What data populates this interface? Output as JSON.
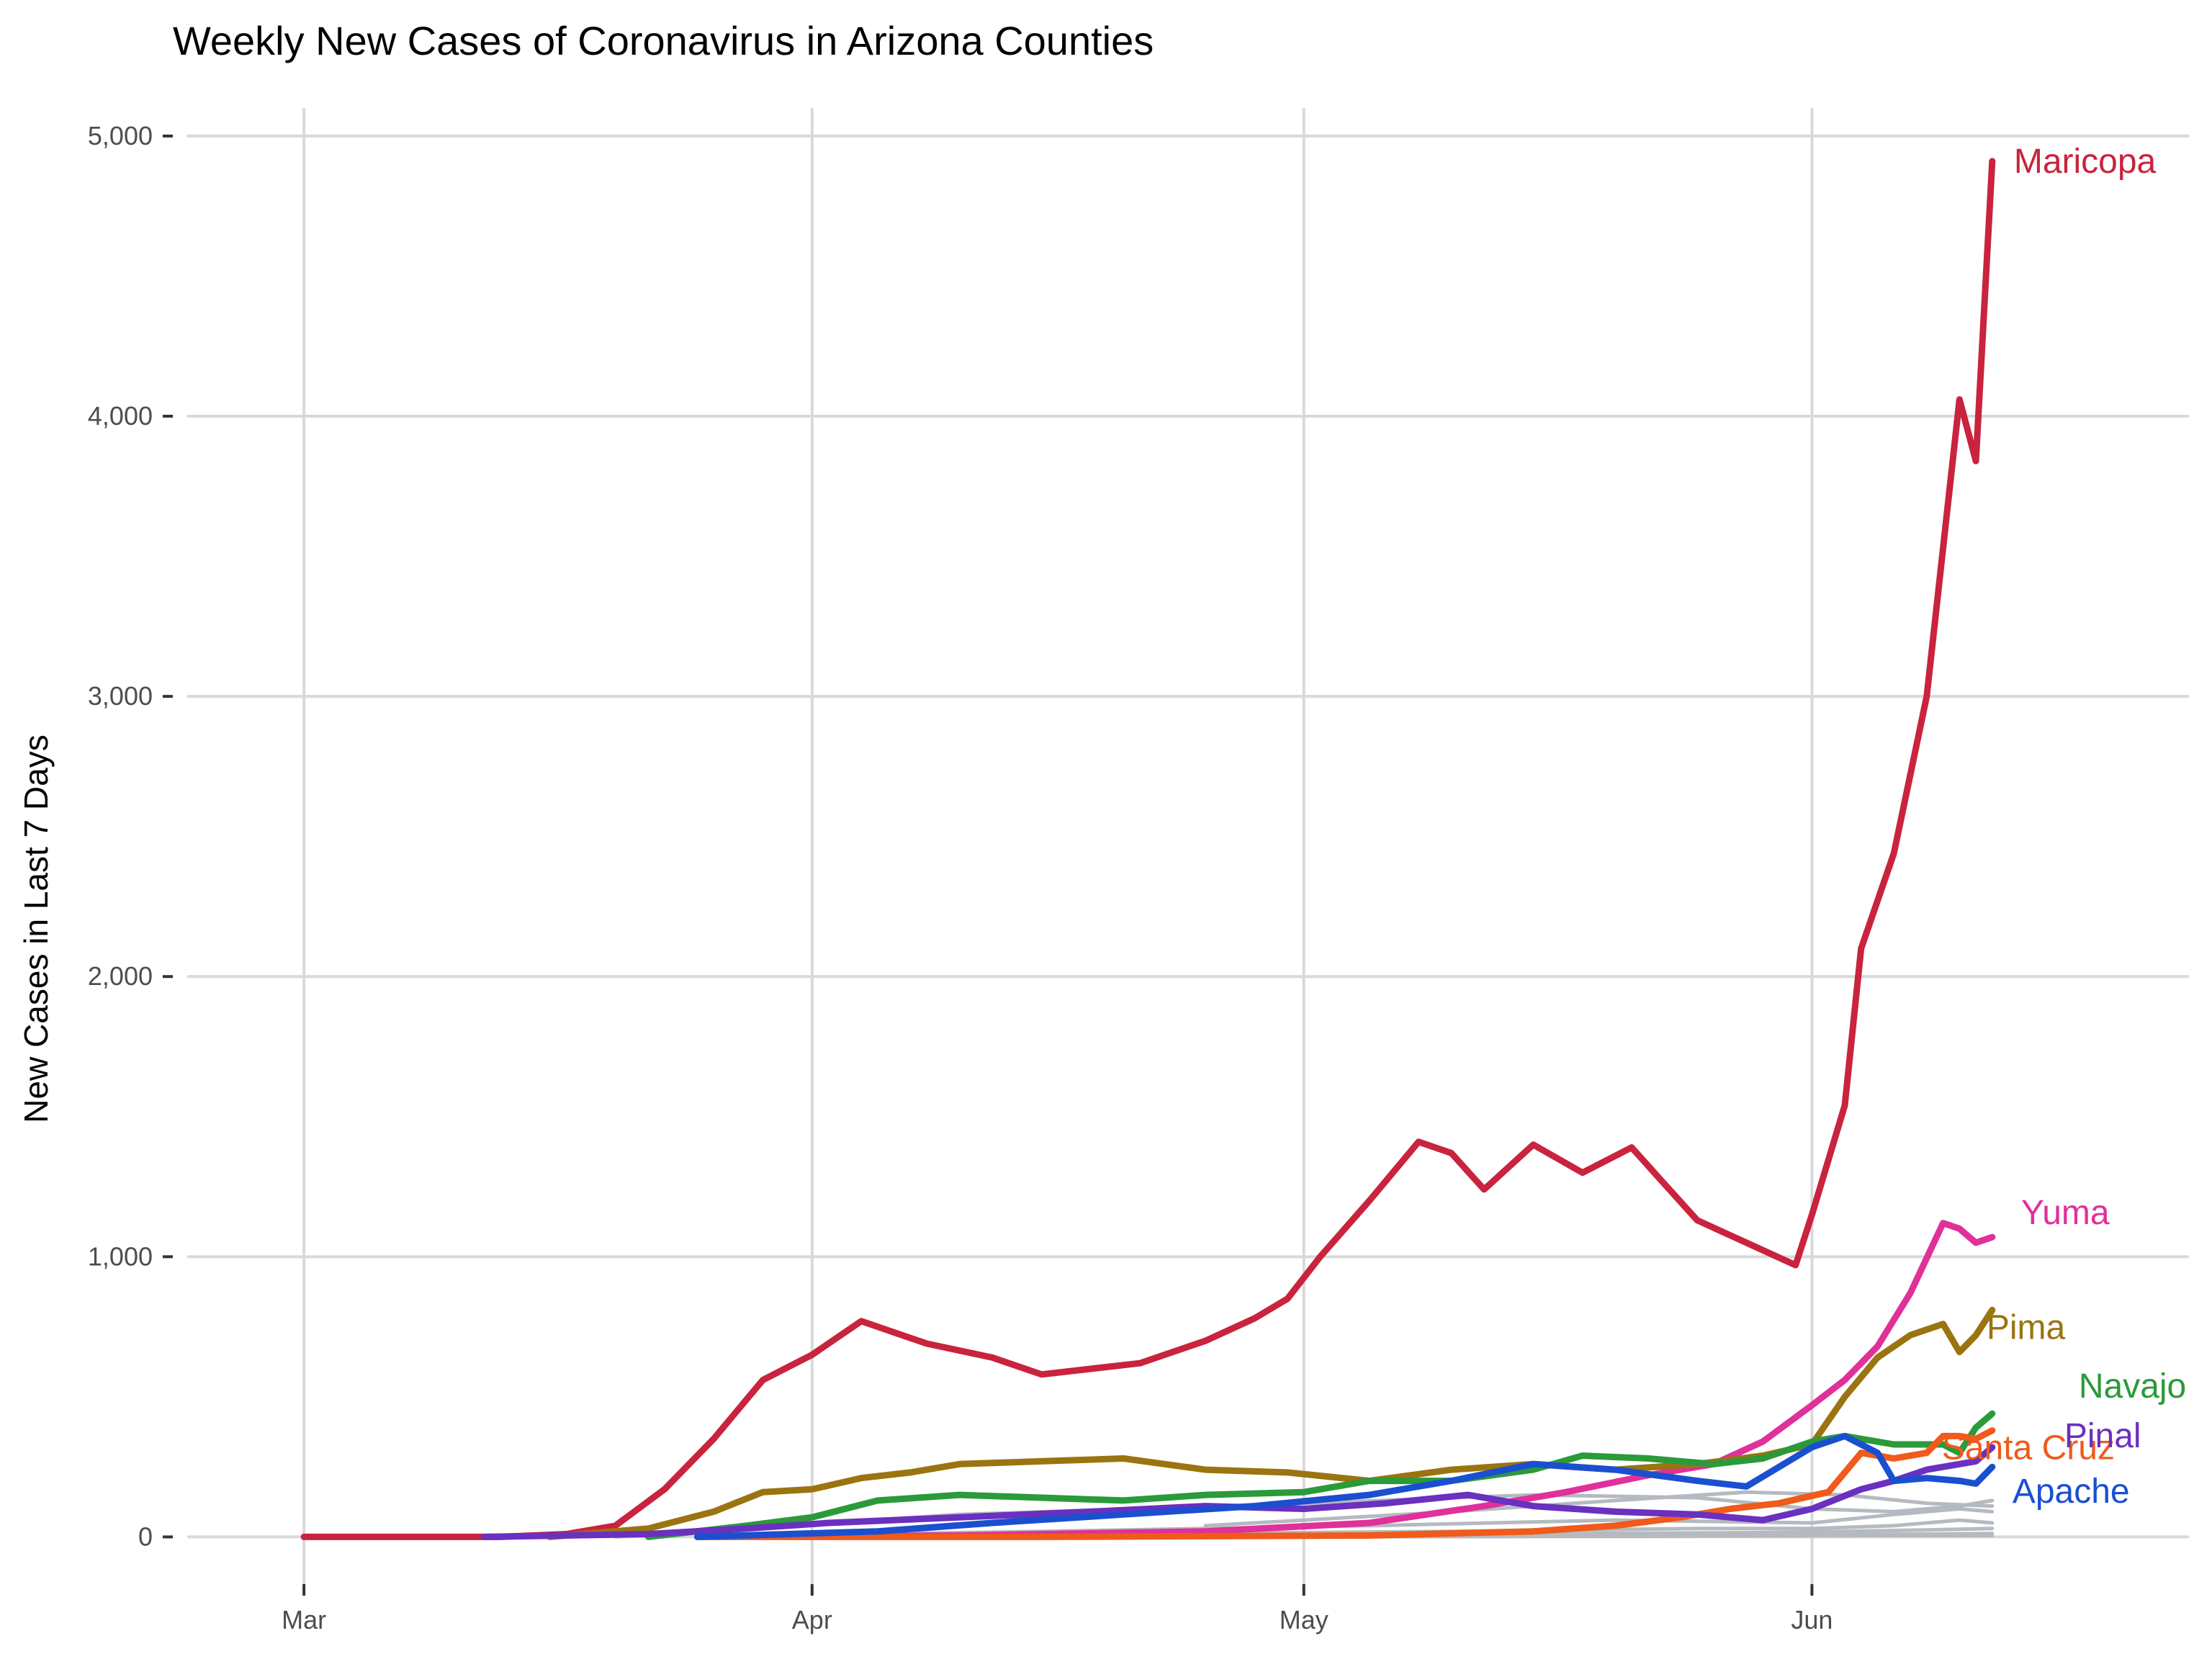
{
  "chart_data": {
    "type": "line",
    "title": "Weekly New Cases of Coronavirus in Arizona Counties",
    "xlabel": "",
    "ylabel": "New Cases in Last 7 Days",
    "x_ticks": [
      "Mar",
      "Apr",
      "May",
      "Jun"
    ],
    "x_tick_dates": [
      "2020-03-01",
      "2020-04-01",
      "2020-05-01",
      "2020-06-01"
    ],
    "x_range": [
      "2020-02-22",
      "2020-06-24"
    ],
    "y_ticks": [
      0,
      1000,
      2000,
      3000,
      4000,
      5000
    ],
    "y_tick_labels": [
      "0",
      "1,000",
      "2,000",
      "3,000",
      "4,000",
      "5,000"
    ],
    "ylim": [
      -40,
      5100
    ],
    "grid": "horizontal and vertical major lines",
    "legend": "direct labels at right end of lines",
    "series": [
      {
        "name": "Maricopa",
        "color": "#c9233e",
        "highlight": true,
        "x": [
          "2020-03-01",
          "2020-03-08",
          "2020-03-13",
          "2020-03-17",
          "2020-03-20",
          "2020-03-23",
          "2020-03-26",
          "2020-03-29",
          "2020-04-01",
          "2020-04-04",
          "2020-04-08",
          "2020-04-12",
          "2020-04-15",
          "2020-04-18",
          "2020-04-21",
          "2020-04-25",
          "2020-04-28",
          "2020-04-30",
          "2020-05-02",
          "2020-05-05",
          "2020-05-08",
          "2020-05-10",
          "2020-05-12",
          "2020-05-15",
          "2020-05-18",
          "2020-05-21",
          "2020-05-23",
          "2020-05-25",
          "2020-05-28",
          "2020-05-31",
          "2020-06-01",
          "2020-06-03",
          "2020-06-04",
          "2020-06-06",
          "2020-06-08",
          "2020-06-10",
          "2020-06-11",
          "2020-06-12"
        ],
        "y": [
          0,
          0,
          0,
          10,
          40,
          170,
          350,
          560,
          650,
          770,
          690,
          640,
          580,
          600,
          620,
          700,
          780,
          850,
          1000,
          1200,
          1410,
          1370,
          1240,
          1400,
          1300,
          1390,
          1260,
          1130,
          1050,
          970,
          1150,
          1540,
          2100,
          2440,
          3000,
          4060,
          3840,
          4910
        ]
      },
      {
        "name": "Yuma",
        "color": "#e0309a",
        "highlight": true,
        "x": [
          "2020-03-25",
          "2020-04-10",
          "2020-04-25",
          "2020-05-05",
          "2020-05-12",
          "2020-05-17",
          "2020-05-22",
          "2020-05-26",
          "2020-05-29",
          "2020-06-01",
          "2020-06-03",
          "2020-06-05",
          "2020-06-07",
          "2020-06-09",
          "2020-06-10",
          "2020-06-11",
          "2020-06-12"
        ],
        "y": [
          0,
          5,
          20,
          50,
          110,
          160,
          220,
          260,
          340,
          470,
          560,
          680,
          870,
          1120,
          1100,
          1050,
          1070
        ]
      },
      {
        "name": "Pima",
        "color": "#9a7410",
        "highlight": true,
        "x": [
          "2020-03-16",
          "2020-03-22",
          "2020-03-26",
          "2020-03-29",
          "2020-04-01",
          "2020-04-04",
          "2020-04-07",
          "2020-04-10",
          "2020-04-15",
          "2020-04-20",
          "2020-04-25",
          "2020-04-30",
          "2020-05-05",
          "2020-05-10",
          "2020-05-15",
          "2020-05-20",
          "2020-05-25",
          "2020-05-29",
          "2020-06-01",
          "2020-06-03",
          "2020-06-05",
          "2020-06-07",
          "2020-06-09",
          "2020-06-10",
          "2020-06-11",
          "2020-06-12"
        ],
        "y": [
          0,
          30,
          90,
          160,
          170,
          210,
          230,
          260,
          270,
          280,
          240,
          230,
          200,
          240,
          260,
          240,
          260,
          290,
          330,
          500,
          640,
          720,
          760,
          660,
          720,
          810
        ]
      },
      {
        "name": "Navajo",
        "color": "#2a9a3a",
        "highlight": true,
        "x": [
          "2020-03-22",
          "2020-03-28",
          "2020-04-01",
          "2020-04-05",
          "2020-04-10",
          "2020-04-15",
          "2020-04-20",
          "2020-04-25",
          "2020-05-01",
          "2020-05-05",
          "2020-05-10",
          "2020-05-15",
          "2020-05-18",
          "2020-05-22",
          "2020-05-26",
          "2020-05-29",
          "2020-06-01",
          "2020-06-03",
          "2020-06-06",
          "2020-06-09",
          "2020-06-10",
          "2020-06-11",
          "2020-06-12"
        ],
        "y": [
          0,
          40,
          70,
          130,
          150,
          140,
          130,
          150,
          160,
          200,
          200,
          240,
          290,
          280,
          260,
          280,
          340,
          360,
          330,
          330,
          300,
          390,
          440
        ]
      },
      {
        "name": "Santa Cruz",
        "color": "#f05a1a",
        "highlight": true,
        "x": [
          "2020-03-25",
          "2020-04-15",
          "2020-05-05",
          "2020-05-15",
          "2020-05-20",
          "2020-05-24",
          "2020-05-27",
          "2020-05-30",
          "2020-06-02",
          "2020-06-04",
          "2020-06-06",
          "2020-06-08",
          "2020-06-09",
          "2020-06-10",
          "2020-06-11",
          "2020-06-12"
        ],
        "y": [
          0,
          0,
          5,
          20,
          40,
          70,
          100,
          120,
          160,
          300,
          280,
          300,
          360,
          360,
          350,
          380
        ]
      },
      {
        "name": "Pinal",
        "color": "#6a30c0",
        "highlight": true,
        "x": [
          "2020-03-12",
          "2020-03-22",
          "2020-03-28",
          "2020-04-02",
          "2020-04-10",
          "2020-04-18",
          "2020-04-25",
          "2020-05-01",
          "2020-05-06",
          "2020-05-11",
          "2020-05-15",
          "2020-05-20",
          "2020-05-25",
          "2020-05-29",
          "2020-06-01",
          "2020-06-04",
          "2020-06-06",
          "2020-06-08",
          "2020-06-10",
          "2020-06-11",
          "2020-06-12"
        ],
        "y": [
          0,
          10,
          30,
          50,
          70,
          90,
          110,
          100,
          120,
          150,
          110,
          90,
          80,
          60,
          100,
          170,
          200,
          240,
          260,
          270,
          320
        ]
      },
      {
        "name": "Apache",
        "color": "#1a4fd0",
        "highlight": true,
        "x": [
          "2020-03-25",
          "2020-04-05",
          "2020-04-12",
          "2020-04-20",
          "2020-04-28",
          "2020-05-05",
          "2020-05-10",
          "2020-05-15",
          "2020-05-20",
          "2020-05-25",
          "2020-05-28",
          "2020-06-01",
          "2020-06-03",
          "2020-06-05",
          "2020-06-06",
          "2020-06-08",
          "2020-06-10",
          "2020-06-11",
          "2020-06-12"
        ],
        "y": [
          0,
          20,
          50,
          80,
          110,
          150,
          200,
          260,
          240,
          200,
          180,
          320,
          360,
          300,
          200,
          210,
          200,
          190,
          250
        ]
      },
      {
        "color": "#b4bac0",
        "highlight": false,
        "x": [
          "2020-03-20",
          "2020-04-10",
          "2020-05-01",
          "2020-05-15",
          "2020-05-25",
          "2020-06-01",
          "2020-06-06",
          "2020-06-10",
          "2020-06-12"
        ],
        "y": [
          0,
          80,
          120,
          150,
          140,
          100,
          90,
          110,
          130
        ]
      },
      {
        "color": "#b4bac0",
        "highlight": false,
        "x": [
          "2020-03-25",
          "2020-04-15",
          "2020-05-05",
          "2020-05-20",
          "2020-06-01",
          "2020-06-06",
          "2020-06-10",
          "2020-06-12"
        ],
        "y": [
          0,
          20,
          40,
          60,
          50,
          80,
          100,
          90
        ]
      },
      {
        "color": "#b4bac0",
        "highlight": false,
        "x": [
          "2020-03-25",
          "2020-04-20",
          "2020-05-10",
          "2020-05-25",
          "2020-06-01",
          "2020-06-06",
          "2020-06-10",
          "2020-06-12"
        ],
        "y": [
          0,
          10,
          20,
          30,
          30,
          40,
          60,
          50
        ]
      },
      {
        "color": "#b4bac0",
        "highlight": false,
        "x": [
          "2020-03-28",
          "2020-04-20",
          "2020-05-10",
          "2020-05-28",
          "2020-06-03",
          "2020-06-08",
          "2020-06-12"
        ],
        "y": [
          0,
          5,
          10,
          15,
          20,
          25,
          30
        ]
      },
      {
        "color": "#b4bac0",
        "highlight": false,
        "x": [
          "2020-03-28",
          "2020-04-25",
          "2020-05-15",
          "2020-06-01",
          "2020-06-08",
          "2020-06-12"
        ],
        "y": [
          0,
          2,
          5,
          8,
          10,
          12
        ]
      },
      {
        "color": "#b4bac0",
        "highlight": false,
        "x": [
          "2020-04-01",
          "2020-05-01",
          "2020-05-25",
          "2020-06-05",
          "2020-06-12"
        ],
        "y": [
          0,
          0,
          3,
          5,
          5
        ]
      },
      {
        "color": "#b4bac0",
        "highlight": false,
        "x": [
          "2020-04-25",
          "2020-05-10",
          "2020-05-20",
          "2020-05-28",
          "2020-06-03",
          "2020-06-08",
          "2020-06-12"
        ],
        "y": [
          40,
          90,
          130,
          160,
          150,
          120,
          110
        ]
      }
    ]
  }
}
